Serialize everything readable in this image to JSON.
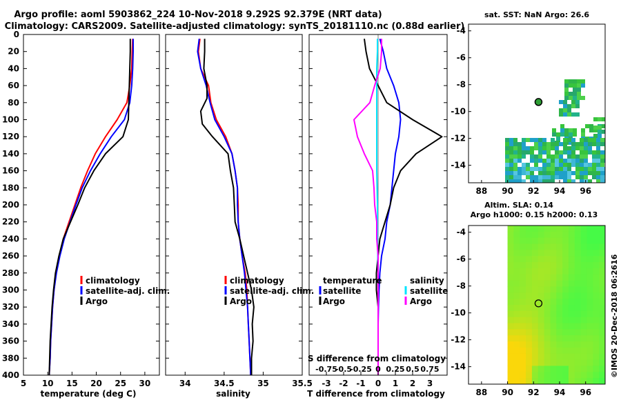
{
  "header": {
    "title_line1": "Argo profile: aoml 5903862_224 10-Nov-2018 9.292S 92.379E (NRT data)",
    "title_line2": "Climatology: CARS2009. Satellite-adjusted climatology: synTS_20181110.nc (0.88d earlier)"
  },
  "colors": {
    "climatology": "#ff0000",
    "satellite": "#0000ff",
    "argo": "#000000",
    "sat_salinity": "#00e5ff",
    "argo_salinity": "#ff00ff"
  },
  "chart_data": [
    {
      "type": "line",
      "title": "",
      "xlabel": "temperature (deg C)",
      "ylabel": "",
      "xlim": [
        5,
        33
      ],
      "ylim": [
        0,
        400
      ],
      "y_inverted": true,
      "xticks": [
        5,
        10,
        15,
        20,
        25,
        30
      ],
      "yticks": [
        0,
        20,
        40,
        60,
        80,
        100,
        120,
        140,
        160,
        180,
        200,
        220,
        240,
        260,
        280,
        300,
        320,
        340,
        360,
        380,
        400
      ],
      "legend": [
        "climatology",
        "satellite-adj. clim.",
        "Argo"
      ],
      "series": [
        {
          "name": "climatology",
          "color": "#ff0000",
          "points": [
            [
              27.5,
              5
            ],
            [
              27.4,
              20
            ],
            [
              27.3,
              40
            ],
            [
              26.9,
              60
            ],
            [
              26.3,
              80
            ],
            [
              24.3,
              100
            ],
            [
              21.9,
              120
            ],
            [
              19.8,
              140
            ],
            [
              18.2,
              160
            ],
            [
              16.8,
              180
            ],
            [
              15.6,
              200
            ],
            [
              14.4,
              220
            ],
            [
              13.2,
              240
            ],
            [
              12.4,
              260
            ],
            [
              11.7,
              280
            ],
            [
              11.3,
              300
            ],
            [
              11.0,
              320
            ],
            [
              10.8,
              340
            ],
            [
              10.6,
              360
            ],
            [
              10.5,
              380
            ],
            [
              10.3,
              400
            ]
          ]
        },
        {
          "name": "satellite-adj. clim.",
          "color": "#0000ff",
          "points": [
            [
              27.6,
              5
            ],
            [
              27.6,
              20
            ],
            [
              27.5,
              40
            ],
            [
              27.3,
              60
            ],
            [
              26.9,
              80
            ],
            [
              25.8,
              100
            ],
            [
              23.1,
              120
            ],
            [
              20.8,
              140
            ],
            [
              18.8,
              160
            ],
            [
              17.1,
              180
            ],
            [
              15.8,
              200
            ],
            [
              14.6,
              220
            ],
            [
              13.4,
              240
            ],
            [
              12.5,
              260
            ],
            [
              11.8,
              280
            ],
            [
              11.3,
              300
            ],
            [
              11.0,
              320
            ],
            [
              10.8,
              340
            ],
            [
              10.6,
              360
            ],
            [
              10.5,
              380
            ],
            [
              10.3,
              400
            ]
          ]
        },
        {
          "name": "Argo",
          "color": "#000000",
          "points": [
            [
              27.0,
              5
            ],
            [
              27.0,
              20
            ],
            [
              26.9,
              40
            ],
            [
              26.8,
              60
            ],
            [
              26.7,
              80
            ],
            [
              26.6,
              100
            ],
            [
              25.5,
              120
            ],
            [
              21.9,
              140
            ],
            [
              19.5,
              160
            ],
            [
              17.6,
              180
            ],
            [
              16.2,
              200
            ],
            [
              14.7,
              220
            ],
            [
              13.2,
              240
            ],
            [
              12.3,
              260
            ],
            [
              11.6,
              280
            ],
            [
              11.2,
              300
            ],
            [
              10.9,
              320
            ],
            [
              10.7,
              340
            ],
            [
              10.5,
              360
            ],
            [
              10.4,
              380
            ],
            [
              10.3,
              400
            ]
          ]
        }
      ]
    },
    {
      "type": "line",
      "title": "",
      "xlabel": "salinity",
      "ylabel": "",
      "xlim": [
        33.75,
        35.5
      ],
      "ylim": [
        0,
        400
      ],
      "y_inverted": true,
      "xticks": [
        34,
        34.5,
        35,
        35.5
      ],
      "legend": [
        "climatology",
        "satellite-adj. clim.",
        "Argo"
      ],
      "series": [
        {
          "name": "climatology",
          "color": "#ff0000",
          "points": [
            [
              34.19,
              5
            ],
            [
              34.17,
              20
            ],
            [
              34.2,
              40
            ],
            [
              34.3,
              60
            ],
            [
              34.33,
              80
            ],
            [
              34.4,
              100
            ],
            [
              34.52,
              120
            ],
            [
              34.6,
              140
            ],
            [
              34.64,
              160
            ],
            [
              34.67,
              180
            ],
            [
              34.68,
              200
            ],
            [
              34.68,
              220
            ],
            [
              34.7,
              240
            ],
            [
              34.73,
              260
            ],
            [
              34.77,
              280
            ],
            [
              34.79,
              300
            ],
            [
              34.8,
              320
            ],
            [
              34.81,
              340
            ],
            [
              34.82,
              360
            ],
            [
              34.83,
              380
            ],
            [
              34.84,
              400
            ]
          ]
        },
        {
          "name": "satellite-adj. clim.",
          "color": "#0000ff",
          "points": [
            [
              34.18,
              5
            ],
            [
              34.16,
              20
            ],
            [
              34.2,
              40
            ],
            [
              34.27,
              60
            ],
            [
              34.32,
              80
            ],
            [
              34.38,
              100
            ],
            [
              34.5,
              120
            ],
            [
              34.6,
              140
            ],
            [
              34.64,
              160
            ],
            [
              34.67,
              180
            ],
            [
              34.67,
              200
            ],
            [
              34.68,
              220
            ],
            [
              34.7,
              240
            ],
            [
              34.73,
              260
            ],
            [
              34.76,
              280
            ],
            [
              34.78,
              300
            ],
            [
              34.8,
              320
            ],
            [
              34.81,
              340
            ],
            [
              34.82,
              360
            ],
            [
              34.83,
              380
            ],
            [
              34.84,
              400
            ]
          ]
        },
        {
          "name": "Argo",
          "color": "#000000",
          "points": [
            [
              34.25,
              5
            ],
            [
              34.25,
              20
            ],
            [
              34.24,
              40
            ],
            [
              34.28,
              60
            ],
            [
              34.28,
              75
            ],
            [
              34.2,
              90
            ],
            [
              34.22,
              105
            ],
            [
              34.35,
              120
            ],
            [
              34.55,
              140
            ],
            [
              34.58,
              160
            ],
            [
              34.62,
              180
            ],
            [
              34.63,
              200
            ],
            [
              34.64,
              220
            ],
            [
              34.7,
              240
            ],
            [
              34.75,
              260
            ],
            [
              34.8,
              280
            ],
            [
              34.85,
              300
            ],
            [
              34.88,
              320
            ],
            [
              34.86,
              340
            ],
            [
              34.87,
              360
            ],
            [
              34.85,
              380
            ],
            [
              34.85,
              400
            ]
          ]
        }
      ]
    },
    {
      "type": "line",
      "title": "",
      "xlabel": "T difference from climatology",
      "x2label": "S difference from climatology",
      "ylabel": "",
      "xlim": [
        -4,
        4
      ],
      "x2lim": [
        -1,
        1
      ],
      "ylim": [
        0,
        400
      ],
      "y_inverted": true,
      "xticks": [
        -3,
        -2,
        -1,
        0,
        1,
        2,
        3
      ],
      "x2ticks": [
        -0.75,
        -0.5,
        -0.25,
        0,
        0.25,
        0.5,
        0.75
      ],
      "x2ticklabels": [
        "-0.75",
        "-0.5",
        "-0.25",
        "0",
        "0.25",
        "0.5",
        "0.75"
      ],
      "legend_temperature": {
        "title": "temperature",
        "entries": [
          "satellite",
          "Argo"
        ]
      },
      "legend_salinity": {
        "title": "salinity",
        "entries": [
          "satellite",
          "Argo"
        ]
      },
      "series": [
        {
          "name": "T satellite",
          "color": "#0000ff",
          "axis": "x",
          "points": [
            [
              0.1,
              5
            ],
            [
              0.3,
              20
            ],
            [
              0.5,
              40
            ],
            [
              0.9,
              60
            ],
            [
              1.2,
              80
            ],
            [
              1.3,
              100
            ],
            [
              1.2,
              120
            ],
            [
              1.0,
              140
            ],
            [
              0.9,
              160
            ],
            [
              0.8,
              180
            ],
            [
              0.7,
              200
            ],
            [
              0.5,
              220
            ],
            [
              0.4,
              240
            ],
            [
              0.2,
              260
            ],
            [
              0.1,
              280
            ],
            [
              0.05,
              300
            ],
            [
              0.02,
              320
            ],
            [
              0.0,
              340
            ],
            [
              0.0,
              360
            ],
            [
              0.0,
              380
            ],
            [
              0.0,
              400
            ]
          ]
        },
        {
          "name": "T Argo",
          "color": "#000000",
          "axis": "x",
          "points": [
            [
              -0.8,
              5
            ],
            [
              -0.7,
              20
            ],
            [
              -0.5,
              40
            ],
            [
              0.0,
              60
            ],
            [
              0.5,
              80
            ],
            [
              2.0,
              100
            ],
            [
              3.7,
              120
            ],
            [
              2.2,
              140
            ],
            [
              1.3,
              160
            ],
            [
              0.9,
              180
            ],
            [
              0.7,
              200
            ],
            [
              0.4,
              220
            ],
            [
              0.1,
              240
            ],
            [
              0.0,
              260
            ],
            [
              -0.1,
              280
            ],
            [
              -0.1,
              300
            ],
            [
              0.0,
              320
            ],
            [
              0.0,
              340
            ],
            [
              0.0,
              360
            ],
            [
              0.0,
              380
            ],
            [
              0.0,
              400
            ]
          ]
        },
        {
          "name": "S satellite",
          "color": "#00e5ff",
          "axis": "x2",
          "points": [
            [
              -0.01,
              5
            ],
            [
              -0.01,
              20
            ],
            [
              -0.02,
              40
            ],
            [
              -0.02,
              80
            ],
            [
              -0.02,
              120
            ],
            [
              -0.02,
              160
            ],
            [
              -0.01,
              200
            ],
            [
              -0.01,
              240
            ],
            [
              0.0,
              280
            ],
            [
              0.0,
              320
            ],
            [
              0.0,
              360
            ],
            [
              0.0,
              400
            ]
          ]
        },
        {
          "name": "S Argo",
          "color": "#ff00ff",
          "axis": "x2",
          "points": [
            [
              0.05,
              5
            ],
            [
              0.05,
              20
            ],
            [
              0.03,
              40
            ],
            [
              -0.05,
              60
            ],
            [
              -0.12,
              80
            ],
            [
              -0.35,
              100
            ],
            [
              -0.3,
              120
            ],
            [
              -0.2,
              140
            ],
            [
              -0.08,
              160
            ],
            [
              -0.06,
              180
            ],
            [
              -0.05,
              200
            ],
            [
              -0.02,
              220
            ],
            [
              -0.02,
              240
            ],
            [
              0.0,
              260
            ],
            [
              0.0,
              280
            ],
            [
              0.0,
              300
            ],
            [
              0.0,
              320
            ],
            [
              0.0,
              340
            ],
            [
              0.0,
              360
            ],
            [
              0.0,
              380
            ],
            [
              0.0,
              400
            ]
          ]
        }
      ]
    },
    {
      "type": "heatmap",
      "title": "sat. SST: NaN Argo: 26.6",
      "xlim": [
        87,
        97.5
      ],
      "ylim": [
        -15.3,
        -3.5
      ],
      "xticks": [
        88,
        90,
        92,
        94,
        96
      ],
      "yticks": [
        -4,
        -6,
        -8,
        -10,
        -12,
        -14
      ],
      "marker": {
        "lon": 92.379,
        "lat": -9.292
      }
    },
    {
      "type": "heatmap",
      "title_line1": "Altim. SLA: 0.14",
      "title_line2": "Argo h1000: 0.15 h2000: 0.13",
      "xlim": [
        87,
        97.5
      ],
      "ylim": [
        -15.3,
        -3.5
      ],
      "xticks": [
        88,
        90,
        92,
        94,
        96
      ],
      "yticks": [
        -4,
        -6,
        -8,
        -10,
        -12,
        -14
      ],
      "marker": {
        "lon": 92.379,
        "lat": -9.292
      }
    }
  ],
  "credit": "©IMOS 20-Dec-2018 06:2616"
}
